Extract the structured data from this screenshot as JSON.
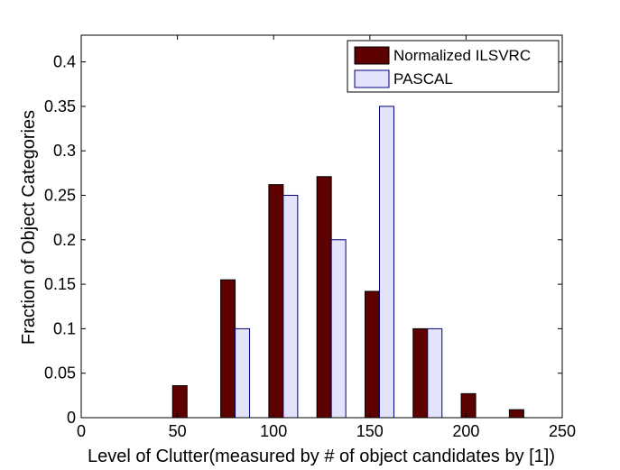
{
  "chart_data": {
    "type": "bar",
    "xlabel": "Level of Clutter(measured by # of object candidates by [1])",
    "ylabel": "Fraction of Object Categories",
    "xlim": [
      0,
      250
    ],
    "ylim": [
      0,
      0.43
    ],
    "x_ticks": [
      "0",
      "50",
      "100",
      "150",
      "200",
      "250"
    ],
    "x_tick_values": [
      0,
      50,
      100,
      150,
      200,
      250
    ],
    "y_ticks": [
      "0",
      "0.05",
      "0.1",
      "0.15",
      "0.2",
      "0.25",
      "0.3",
      "0.35",
      "0.4"
    ],
    "y_tick_values": [
      0,
      0.05,
      0.1,
      0.15,
      0.2,
      0.25,
      0.3,
      0.35,
      0.4
    ],
    "bin_centers": [
      5,
      30,
      55,
      80,
      105,
      130,
      155,
      180,
      205,
      230
    ],
    "bar_width": 7.5,
    "grid": false,
    "legend_position": "top-right",
    "series": [
      {
        "name": "Normalized ILSVRC",
        "color": "#5c0000",
        "edge_color": "#000000",
        "offset": -3.75,
        "values": [
          0,
          0,
          0.036,
          0.155,
          0.262,
          0.271,
          0.142,
          0.1,
          0.027,
          0.009
        ]
      },
      {
        "name": "PASCAL",
        "color": "#e3e3fb",
        "edge_color": "#00007a",
        "offset": 3.75,
        "values": [
          0,
          0,
          0,
          0.1,
          0.25,
          0.2,
          0.35,
          0.1,
          0,
          0
        ]
      }
    ]
  }
}
